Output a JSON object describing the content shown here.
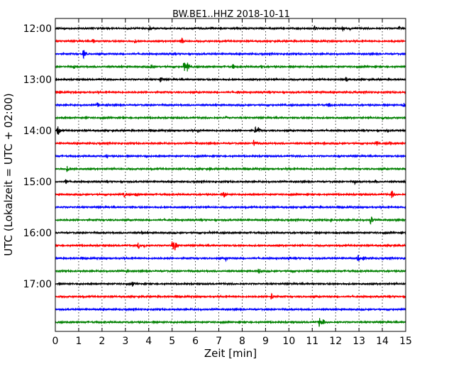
{
  "chart_data": {
    "type": "line",
    "title": "BW.BE1..HHZ 2018-10-11",
    "xlabel": "Zeit  [min]",
    "ylabel": "UTC (Lokalzeit = UTC + 02:00)",
    "xlim": [
      0,
      15
    ],
    "x_ticks": [
      "0",
      "1",
      "2",
      "3",
      "4",
      "5",
      "6",
      "7",
      "8",
      "9",
      "10",
      "11",
      "12",
      "13",
      "14",
      "15"
    ],
    "y_tick_labels": [
      "12:00",
      "13:00",
      "14:00",
      "15:00",
      "16:00",
      "17:00"
    ],
    "grid": true,
    "color_cycle": [
      "#000000",
      "#ff0000",
      "#0000ff",
      "#008000"
    ],
    "traces": [
      {
        "start": "12:00",
        "events": [
          [
            3.1,
            0.3
          ],
          [
            4.0,
            0.45
          ],
          [
            11.1,
            0.45
          ],
          [
            12.3,
            0.35
          ],
          [
            12.6,
            0.3
          ],
          [
            14.7,
            0.35
          ]
        ]
      },
      {
        "start": "12:15",
        "events": [
          [
            1.6,
            0.4
          ],
          [
            3.4,
            0.35
          ],
          [
            5.4,
            0.65
          ],
          [
            14.4,
            0.4
          ]
        ]
      },
      {
        "start": "12:30",
        "events": [
          [
            1.2,
            0.7
          ],
          [
            5.0,
            0.25
          ],
          [
            9.9,
            0.25
          ]
        ]
      },
      {
        "start": "12:45",
        "events": [
          [
            0.8,
            0.35
          ],
          [
            4.1,
            0.45
          ],
          [
            5.5,
            0.9
          ],
          [
            5.65,
            0.7
          ],
          [
            7.6,
            0.5
          ],
          [
            8.8,
            0.3
          ]
        ]
      },
      {
        "start": "13:00",
        "events": [
          [
            4.5,
            0.5
          ],
          [
            12.45,
            0.5
          ],
          [
            13.2,
            0.25
          ]
        ]
      },
      {
        "start": "13:15",
        "events": [
          [
            0.2,
            0.3
          ],
          [
            7.8,
            0.3
          ],
          [
            11.4,
            0.3
          ],
          [
            12.8,
            0.3
          ]
        ]
      },
      {
        "start": "13:30",
        "events": [
          [
            1.8,
            0.4
          ],
          [
            2.2,
            0.3
          ],
          [
            11.7,
            0.5
          ],
          [
            14.9,
            0.5
          ]
        ]
      },
      {
        "start": "13:45",
        "events": [
          [
            1.3,
            0.3
          ],
          [
            2.9,
            0.35
          ],
          [
            7.3,
            0.25
          ],
          [
            14.0,
            0.3
          ]
        ]
      },
      {
        "start": "14:00",
        "events": [
          [
            0.1,
            0.9
          ],
          [
            6.1,
            0.4
          ],
          [
            8.55,
            0.6
          ],
          [
            8.7,
            0.5
          ],
          [
            14.2,
            0.35
          ]
        ]
      },
      {
        "start": "14:15",
        "events": [
          [
            6.0,
            0.25
          ],
          [
            8.5,
            0.6
          ],
          [
            11.5,
            0.3
          ],
          [
            13.75,
            0.45
          ],
          [
            14.3,
            0.3
          ]
        ]
      },
      {
        "start": "14:30",
        "events": [
          [
            2.2,
            0.3
          ],
          [
            3.9,
            0.25
          ],
          [
            12.1,
            0.25
          ]
        ]
      },
      {
        "start": "14:45",
        "events": [
          [
            0.5,
            0.5
          ],
          [
            0.8,
            0.3
          ],
          [
            6.6,
            0.3
          ],
          [
            10.0,
            0.25
          ]
        ]
      },
      {
        "start": "15:00",
        "events": [
          [
            0.45,
            0.45
          ],
          [
            12.8,
            0.45
          ],
          [
            13.7,
            0.3
          ]
        ]
      },
      {
        "start": "15:15",
        "events": [
          [
            2.95,
            0.45
          ],
          [
            3.45,
            0.4
          ],
          [
            7.2,
            0.75
          ],
          [
            14.4,
            0.65
          ]
        ]
      },
      {
        "start": "15:30",
        "events": [
          [
            3.3,
            0.2
          ],
          [
            11.0,
            0.2
          ]
        ]
      },
      {
        "start": "15:45",
        "events": [
          [
            10.9,
            0.35
          ],
          [
            13.5,
            0.8
          ],
          [
            11.8,
            0.25
          ]
        ]
      },
      {
        "start": "16:00",
        "events": [
          [
            3.7,
            0.3
          ],
          [
            6.6,
            0.25
          ],
          [
            12.0,
            0.3
          ]
        ]
      },
      {
        "start": "16:15",
        "events": [
          [
            3.55,
            0.55
          ],
          [
            3.8,
            0.4
          ],
          [
            5.0,
            0.9
          ],
          [
            5.12,
            0.75
          ],
          [
            14.5,
            0.3
          ]
        ]
      },
      {
        "start": "16:30",
        "events": [
          [
            7.3,
            0.35
          ],
          [
            10.0,
            0.3
          ],
          [
            12.95,
            0.65
          ],
          [
            13.2,
            0.45
          ]
        ]
      },
      {
        "start": "16:45",
        "events": [
          [
            3.05,
            0.4
          ],
          [
            8.7,
            0.45
          ],
          [
            10.1,
            0.25
          ]
        ]
      },
      {
        "start": "17:00",
        "events": [
          [
            3.3,
            0.4
          ],
          [
            5.2,
            0.2
          ],
          [
            11.0,
            0.25
          ]
        ]
      },
      {
        "start": "17:15",
        "events": [
          [
            9.25,
            0.65
          ],
          [
            13.8,
            0.25
          ]
        ]
      },
      {
        "start": "17:30",
        "events": []
      },
      {
        "start": "17:45",
        "events": [
          [
            11.3,
            0.85
          ],
          [
            11.45,
            0.5
          ]
        ]
      }
    ]
  }
}
